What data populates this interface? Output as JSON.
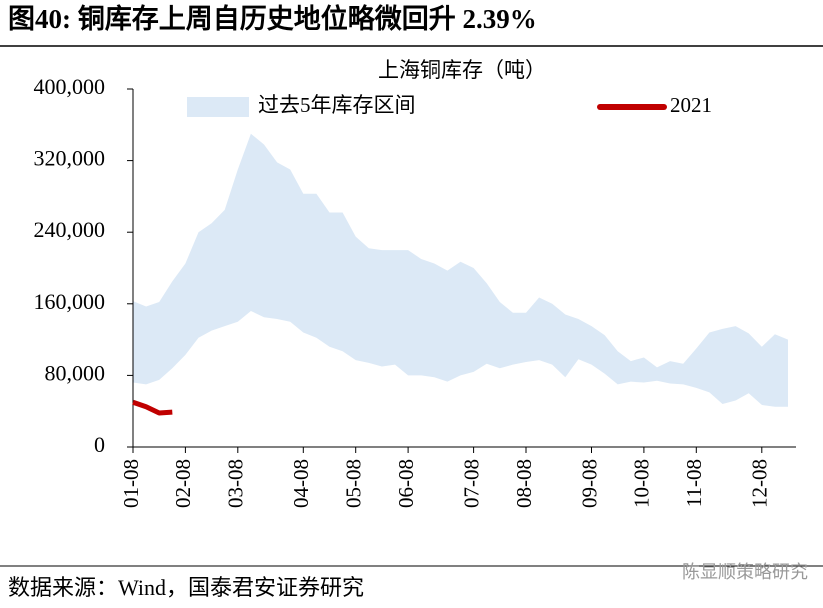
{
  "chart_data": {
    "type": "band-line",
    "title": "图40: 铜库存上周自历史地位略微回升 2.39%",
    "ylabel": "上海铜库存（吨）",
    "source": "数据来源：Wind，国泰君安证券研究",
    "watermark": "陈显顺策略研究",
    "categories": [
      "01-08",
      null,
      null,
      null,
      "02-08",
      null,
      null,
      null,
      "03-08",
      null,
      null,
      null,
      null,
      "04-08",
      null,
      null,
      null,
      "05-08",
      null,
      null,
      null,
      "06-08",
      null,
      null,
      null,
      null,
      "07-08",
      null,
      null,
      null,
      "08-08",
      null,
      null,
      null,
      null,
      "09-08",
      null,
      null,
      null,
      "10-08",
      null,
      null,
      null,
      "11-08",
      null,
      null,
      null,
      null,
      "12-08",
      null,
      null
    ],
    "ylim": [
      0,
      400000
    ],
    "yticks": [
      {
        "value": 0,
        "label": "0"
      },
      {
        "value": 80000,
        "label": "80,000"
      },
      {
        "value": 160000,
        "label": "160,000"
      },
      {
        "value": 240000,
        "label": "240,000"
      },
      {
        "value": 320000,
        "label": "320,000"
      },
      {
        "value": 400000,
        "label": "400,000"
      }
    ],
    "series": [
      {
        "name": "过去5年库存区间",
        "color": "#dce9f6",
        "high": [
          163000,
          157000,
          162000,
          185000,
          205000,
          240000,
          250000,
          265000,
          310000,
          350000,
          338000,
          318000,
          310000,
          283000,
          283000,
          262000,
          262000,
          235000,
          222000,
          220000,
          220000,
          220000,
          210000,
          205000,
          197000,
          207000,
          200000,
          183000,
          162000,
          150000,
          150000,
          167000,
          160000,
          148000,
          143000,
          135000,
          125000,
          107000,
          96000,
          100000,
          89000,
          96000,
          93000,
          110000,
          128000,
          132000,
          135000,
          127000,
          112000,
          126000,
          120000
        ],
        "low": [
          72000,
          70000,
          75000,
          88000,
          103000,
          122000,
          130000,
          135000,
          140000,
          152000,
          145000,
          143000,
          140000,
          128000,
          122000,
          112000,
          107000,
          97000,
          94000,
          90000,
          92000,
          80000,
          80000,
          78000,
          73000,
          80000,
          84000,
          93000,
          88000,
          92000,
          95000,
          97000,
          92000,
          78000,
          98000,
          92000,
          82000,
          70000,
          73000,
          72000,
          74000,
          71000,
          70000,
          66000,
          61000,
          48000,
          52000,
          60000,
          47000,
          45000,
          45000
        ]
      },
      {
        "name": "2021",
        "color": "#c00000",
        "values": [
          50000,
          45000,
          38000,
          39000,
          null,
          null,
          null,
          null,
          null,
          null,
          null,
          null,
          null,
          null,
          null,
          null,
          null,
          null,
          null,
          null,
          null,
          null,
          null,
          null,
          null,
          null,
          null,
          null,
          null,
          null,
          null,
          null,
          null,
          null,
          null,
          null,
          null,
          null,
          null,
          null,
          null,
          null,
          null,
          null,
          null,
          null,
          null,
          null,
          null,
          null,
          null
        ]
      }
    ]
  }
}
